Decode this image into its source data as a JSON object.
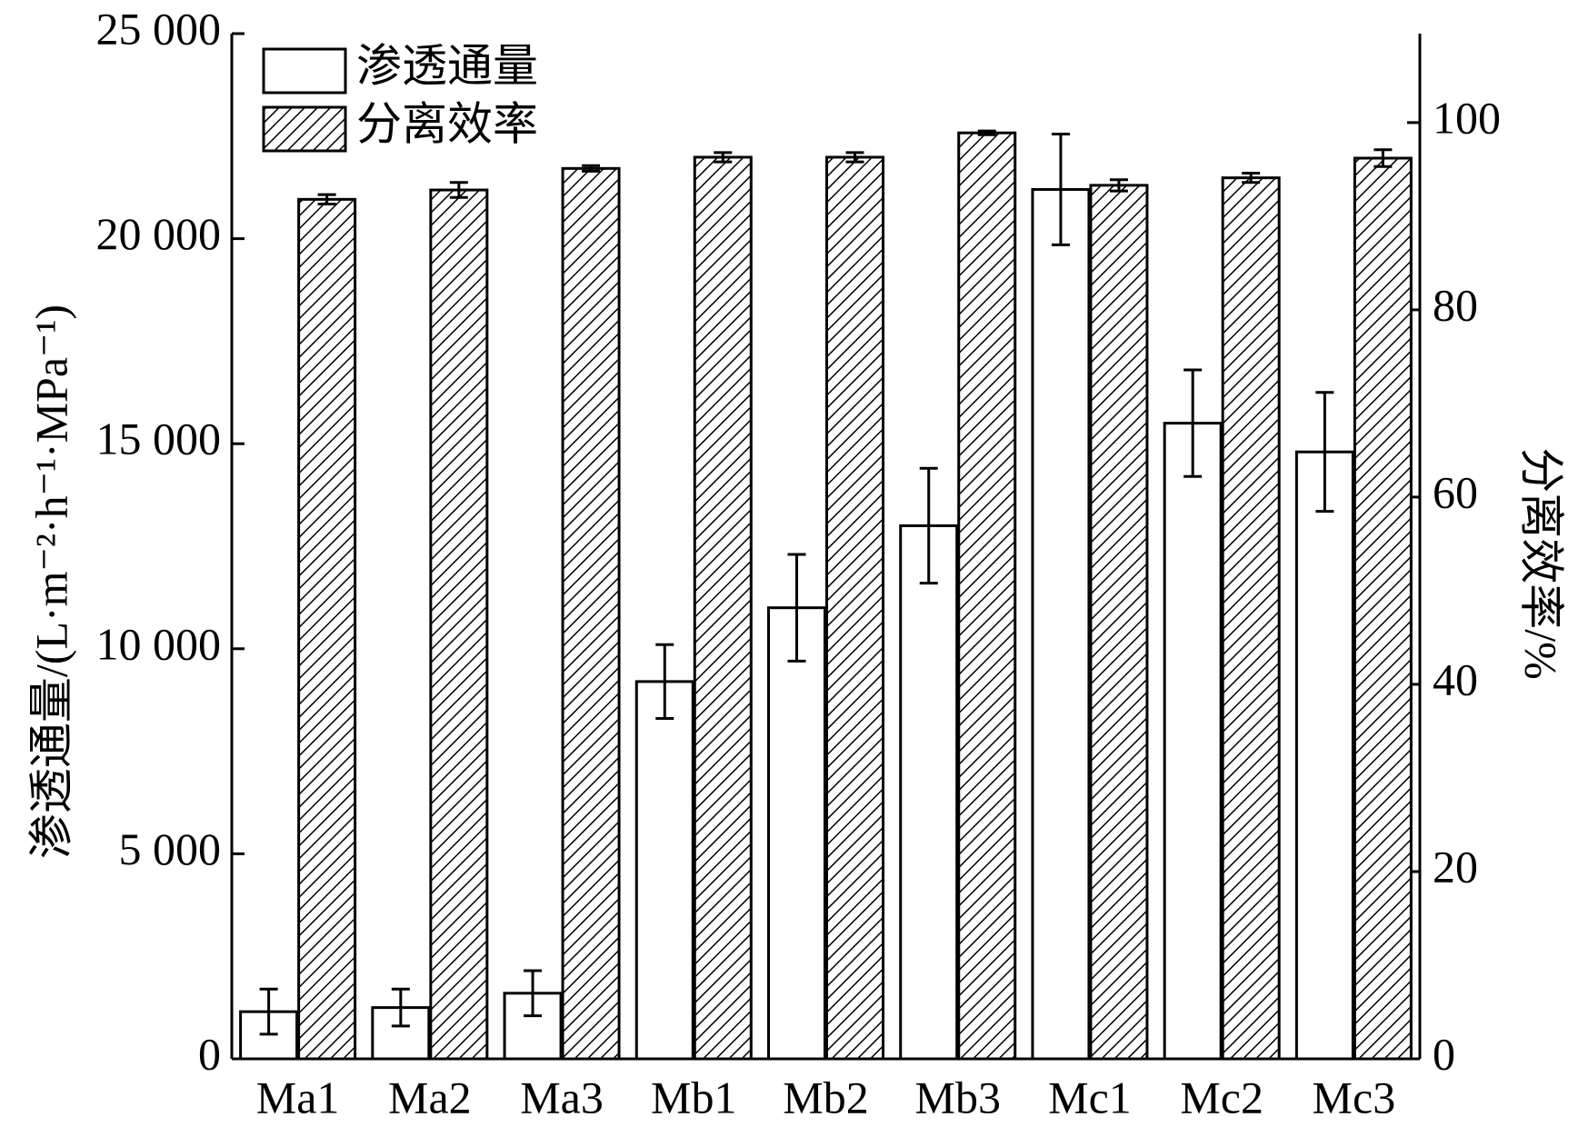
{
  "chart_data": {
    "type": "bar",
    "categories": [
      "Ma1",
      "Ma2",
      "Ma3",
      "Mb1",
      "Mb2",
      "Mb3",
      "Mc1",
      "Mc2",
      "Mc3"
    ],
    "series": [
      {
        "name": "渗透通量",
        "color": "#ffffff",
        "values": [
          1150,
          1250,
          1600,
          9200,
          11000,
          13000,
          21200,
          15500,
          14800
        ],
        "errors": [
          550,
          450,
          550,
          900,
          1300,
          1400,
          1350,
          1300,
          1450
        ]
      },
      {
        "name": "分离效率",
        "color": "hatch",
        "axis": "y2",
        "values": [
          91.8,
          92.8,
          95.1,
          96.3,
          96.3,
          98.9,
          93.3,
          94.1,
          96.2
        ],
        "errors": [
          0.5,
          0.8,
          0.3,
          0.5,
          0.5,
          0.2,
          0.6,
          0.5,
          0.9
        ]
      }
    ],
    "ylabel": "渗透通量/(L·m⁻²·h⁻¹·MPa⁻¹)",
    "y2label": "分离效率/%",
    "ylim": [
      0,
      25000
    ],
    "yticks": [
      0,
      {
        "value": 5000,
        "label": "5 000"
      },
      {
        "value": 10000,
        "label": "10 000"
      },
      {
        "value": 15000,
        "label": "15 000"
      },
      {
        "value": 20000,
        "label": "20 000"
      },
      {
        "value": 25000,
        "label": "25 000"
      }
    ],
    "y2lim": [
      0,
      109.5
    ],
    "y2ticks": [
      0,
      20,
      40,
      60,
      80,
      100
    ],
    "legend": "upper left"
  }
}
